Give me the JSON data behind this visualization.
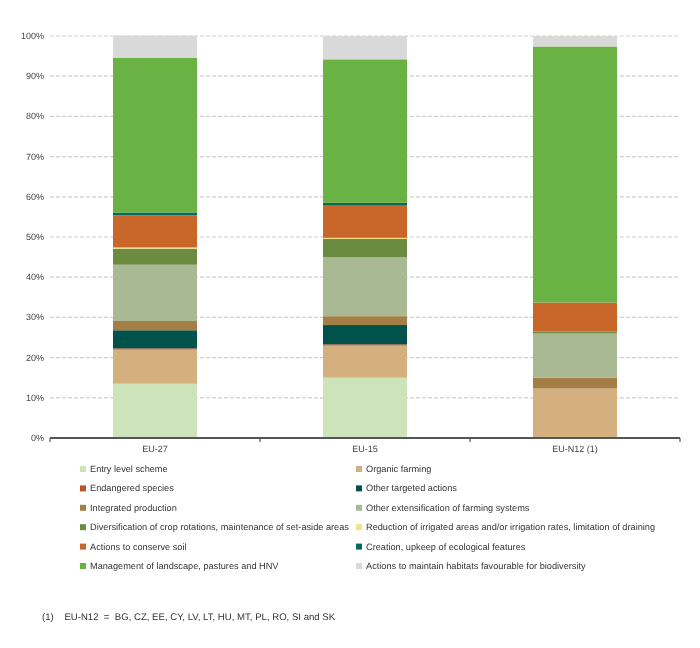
{
  "chart_data": {
    "type": "bar",
    "stacked": true,
    "categories": [
      "EU-27",
      "EU-15",
      "EU-N12 (1)"
    ],
    "series": [
      {
        "name": "Entry level scheme",
        "color": "#cde3b9",
        "values": [
          13.5,
          15,
          0
        ]
      },
      {
        "name": "Organic farming",
        "color": "#d4b07e",
        "values": [
          8.5,
          8,
          12.3
        ]
      },
      {
        "name": "Endangered species",
        "color": "#c0502a",
        "values": [
          0.3,
          0.3,
          0
        ]
      },
      {
        "name": "Other targeted actions",
        "color": "#00524a",
        "values": [
          4.5,
          4.8,
          0
        ]
      },
      {
        "name": "Integrated production",
        "color": "#a57e45",
        "values": [
          2.3,
          2.2,
          2.7
        ]
      },
      {
        "name": "Other extensification of farming systems",
        "color": "#a9b994",
        "values": [
          14,
          14.7,
          11
        ]
      },
      {
        "name": "Diversification of crop rotations, maintenance of set-aside areas",
        "color": "#6a8b40",
        "values": [
          4,
          4.5,
          0.5
        ]
      },
      {
        "name": "Reduction of irrigated areas and/or irrigation rates, limitation of draining",
        "color": "#f5e08a",
        "values": [
          0.3,
          0.3,
          0
        ]
      },
      {
        "name": "Actions to conserve soil",
        "color": "#c9672b",
        "values": [
          8,
          8,
          7.2
        ]
      },
      {
        "name": "Creation, upkeep of ecological features",
        "color": "#006b5e",
        "values": [
          0.7,
          0.7,
          0
        ]
      },
      {
        "name": "Management of landscape, pastures and HNV",
        "color": "#6bb244",
        "values": [
          38.5,
          35.7,
          63.7
        ]
      },
      {
        "name": "Actions to maintain habitats favourable for biodiversity",
        "color": "#d9d9d9",
        "values": [
          5.5,
          5.8,
          2.6
        ]
      }
    ],
    "ylim": [
      0,
      100
    ],
    "yticks": [
      {
        "value": 0,
        "label": "0%"
      },
      {
        "value": 10,
        "label": "10%"
      },
      {
        "value": 20,
        "label": "20%"
      },
      {
        "value": 30,
        "label": "30%"
      },
      {
        "value": 40,
        "label": "40%"
      },
      {
        "value": 50,
        "label": "50%"
      },
      {
        "value": 60,
        "label": "60%"
      },
      {
        "value": 70,
        "label": "70%"
      },
      {
        "value": 80,
        "label": "80%"
      },
      {
        "value": 90,
        "label": "90%"
      },
      {
        "value": 100,
        "label": "100%"
      }
    ],
    "grid": "y",
    "legend": "bottom",
    "annotations": [
      "(1)    EU-N12  =  BG, CZ, EE, CY, LV, LT, HU, MT, PL, RO, SI and SK"
    ]
  }
}
